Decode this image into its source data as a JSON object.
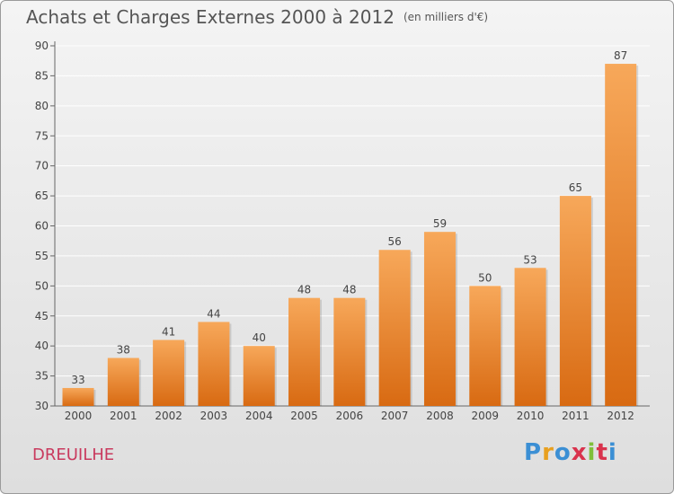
{
  "header": {
    "title": "Achats et Charges Externes 2000 à 2012",
    "unit": "(en milliers d'€)"
  },
  "footer": {
    "commune": "DREUILHE",
    "logo": "Proxiti"
  },
  "colors": {
    "bar_light": "#f7a85a",
    "bar_dark": "#d86a12",
    "commune": "#c93a5e"
  },
  "chart_data": {
    "type": "bar",
    "title": "Achats et Charges Externes 2000 à 2012",
    "subtitle": "(en milliers d'€)",
    "categories": [
      "2000",
      "2001",
      "2002",
      "2003",
      "2004",
      "2005",
      "2006",
      "2007",
      "2008",
      "2009",
      "2010",
      "2011",
      "2012"
    ],
    "values": [
      33,
      38,
      41,
      44,
      40,
      48,
      48,
      56,
      59,
      50,
      53,
      65,
      87
    ],
    "ylim": [
      30,
      90
    ],
    "yticks": [
      30,
      35,
      40,
      45,
      50,
      55,
      60,
      65,
      70,
      75,
      80,
      85,
      90
    ],
    "grid": true,
    "legend": "none"
  }
}
